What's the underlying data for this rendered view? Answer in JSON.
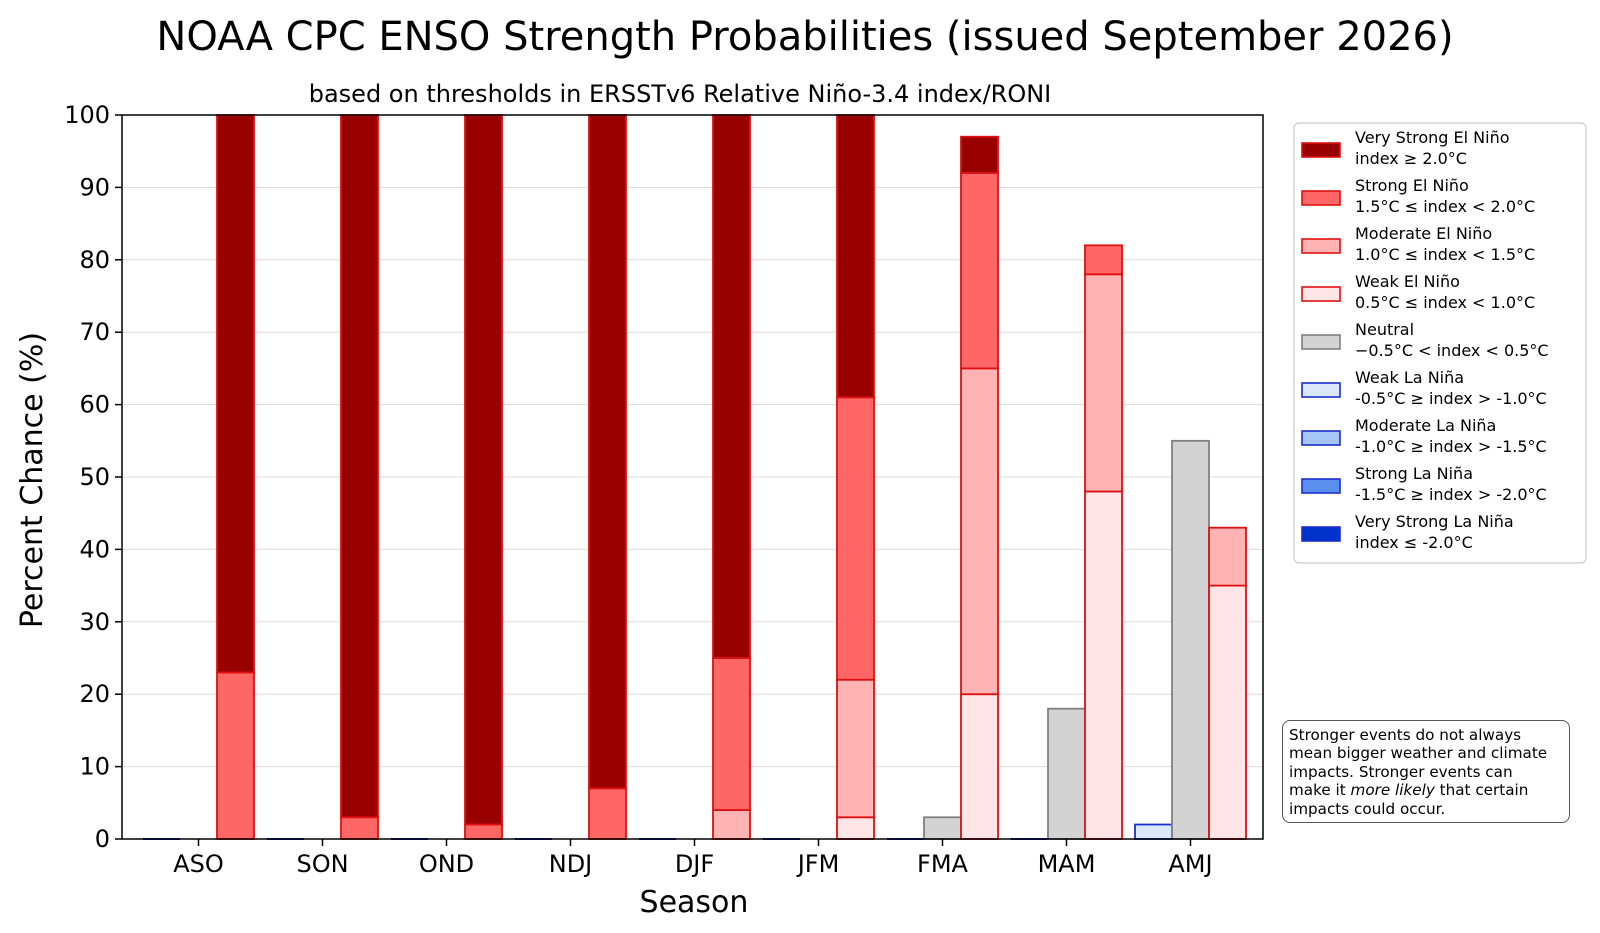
{
  "chart_data": {
    "type": "bar",
    "title": "NOAA CPC ENSO Strength Probabilities (issued September 2026)",
    "subtitle": "based on thresholds in ERSSTv6 Relative Niño-3.4 index/RONI",
    "xlabel": "Season",
    "ylabel": "Percent Chance (%)",
    "ylim": [
      0,
      100
    ],
    "yticks": [
      0,
      10,
      20,
      30,
      40,
      50,
      60,
      70,
      80,
      90,
      100
    ],
    "categories": [
      "ASO",
      "SON",
      "OND",
      "NDJ",
      "DJF",
      "JFM",
      "FMA",
      "MAM",
      "AMJ"
    ],
    "grid": "horizontal",
    "legend_position": "right",
    "la_nina_bar": {
      "stack": [
        {
          "key": "weak_la_nina",
          "values": [
            0,
            0,
            0,
            0,
            0,
            0,
            0,
            0,
            2
          ]
        },
        {
          "key": "moderate_la_nina",
          "values": [
            0,
            0,
            0,
            0,
            0,
            0,
            0,
            0,
            0
          ]
        },
        {
          "key": "strong_la_nina",
          "values": [
            0,
            0,
            0,
            0,
            0,
            0,
            0,
            0,
            0
          ]
        },
        {
          "key": "very_strong_la_nina",
          "values": [
            0,
            0,
            0,
            0,
            0,
            0,
            0,
            0,
            0
          ]
        }
      ]
    },
    "neutral_bar": {
      "stack": [
        {
          "key": "neutral",
          "values": [
            0,
            0,
            0,
            0,
            0,
            0,
            3,
            18,
            55
          ]
        }
      ]
    },
    "el_nino_bar": {
      "stack": [
        {
          "key": "weak_el_nino",
          "values": [
            0,
            0,
            0,
            0,
            0,
            3,
            20,
            48,
            35
          ]
        },
        {
          "key": "moderate_el_nino",
          "values": [
            0,
            0,
            0,
            0,
            4,
            19,
            45,
            30,
            8
          ]
        },
        {
          "key": "strong_el_nino",
          "values": [
            23,
            3,
            2,
            7,
            21,
            39,
            27,
            4,
            0
          ]
        },
        {
          "key": "very_strong_el_nino",
          "values": [
            77,
            97,
            98,
            93,
            75,
            39,
            5,
            0,
            0
          ]
        }
      ]
    },
    "series": [
      {
        "key": "very_strong_el_nino",
        "name": "Very Strong El Niño",
        "threshold": "index ≥ 2.0°C",
        "fill": "#990000",
        "edge": "#dd1111"
      },
      {
        "key": "strong_el_nino",
        "name": "Strong El Niño",
        "threshold": "1.5°C ≤ index < 2.0°C",
        "fill": "#ff6666",
        "edge": "#dd1111"
      },
      {
        "key": "moderate_el_nino",
        "name": "Moderate El Niño",
        "threshold": "1.0°C ≤ index < 1.5°C",
        "fill": "#ffb3b3",
        "edge": "#dd1111"
      },
      {
        "key": "weak_el_nino",
        "name": "Weak El Niño",
        "threshold": "0.5°C ≤ index < 1.0°C",
        "fill": "#ffe5e5",
        "edge": "#dd1111"
      },
      {
        "key": "neutral",
        "name": "Neutral",
        "threshold": "−0.5°C < index < 0.5°C",
        "fill": "#d3d3d3",
        "edge": "#808080"
      },
      {
        "key": "weak_la_nina",
        "name": "Weak La Niña",
        "threshold": "-0.5°C ≥ index > -1.0°C",
        "fill": "#dbe8fb",
        "edge": "#1a2fcc"
      },
      {
        "key": "moderate_la_nina",
        "name": "Moderate La Niña",
        "threshold": "-1.0°C ≥ index > -1.5°C",
        "fill": "#a5c6f7",
        "edge": "#1a2fcc"
      },
      {
        "key": "strong_la_nina",
        "name": "Strong La Niña",
        "threshold": "-1.5°C ≥ index > -2.0°C",
        "fill": "#5a8ff0",
        "edge": "#1a2fcc"
      },
      {
        "key": "very_strong_la_nina",
        "name": "Very Strong La Niña",
        "threshold": "index ≤ -2.0°C",
        "fill": "#0033cc",
        "edge": "#1a2fcc"
      }
    ],
    "annotation": {
      "line1": "Stronger events do not always",
      "line2": "mean bigger weather and climate",
      "line3": "impacts. Stronger events can",
      "line4_pre": "make it ",
      "line4_italic": "more likely",
      "line4_post": " that certain",
      "line5": "impacts could occur."
    }
  }
}
